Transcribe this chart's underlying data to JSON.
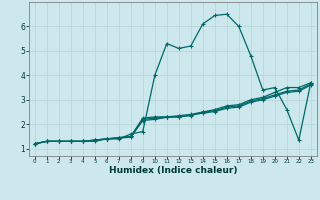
{
  "xlabel": "Humidex (Indice chaleur)",
  "xlim": [
    -0.5,
    23.5
  ],
  "ylim": [
    0.7,
    7.0
  ],
  "yticks": [
    1,
    2,
    3,
    4,
    5,
    6
  ],
  "xticks": [
    0,
    1,
    2,
    3,
    4,
    5,
    6,
    7,
    8,
    9,
    10,
    11,
    12,
    13,
    14,
    15,
    16,
    17,
    18,
    19,
    20,
    21,
    22,
    23
  ],
  "bg_color": "#cce8ec",
  "grid_color": "#b8d8dc",
  "line_color": "#006868",
  "lines": [
    [
      1.2,
      1.3,
      1.3,
      1.3,
      1.3,
      1.3,
      1.4,
      1.4,
      1.6,
      1.7,
      4.0,
      5.3,
      5.1,
      5.2,
      6.1,
      6.45,
      6.5,
      6.0,
      4.8,
      3.4,
      3.5,
      2.6,
      1.35,
      3.7
    ],
    [
      1.2,
      1.3,
      1.3,
      1.3,
      1.3,
      1.35,
      1.4,
      1.45,
      1.5,
      2.25,
      2.3,
      2.3,
      2.3,
      2.35,
      2.5,
      2.6,
      2.75,
      2.8,
      3.0,
      3.1,
      3.3,
      3.5,
      3.5,
      3.7
    ],
    [
      1.2,
      1.3,
      1.3,
      1.3,
      1.3,
      1.35,
      1.4,
      1.45,
      1.5,
      2.2,
      2.25,
      2.3,
      2.35,
      2.4,
      2.5,
      2.55,
      2.7,
      2.75,
      2.95,
      3.05,
      3.2,
      3.35,
      3.4,
      3.65
    ],
    [
      1.2,
      1.3,
      1.3,
      1.3,
      1.3,
      1.35,
      1.4,
      1.43,
      1.47,
      2.15,
      2.2,
      2.28,
      2.3,
      2.38,
      2.45,
      2.52,
      2.65,
      2.7,
      2.9,
      3.0,
      3.15,
      3.3,
      3.35,
      3.6
    ]
  ]
}
